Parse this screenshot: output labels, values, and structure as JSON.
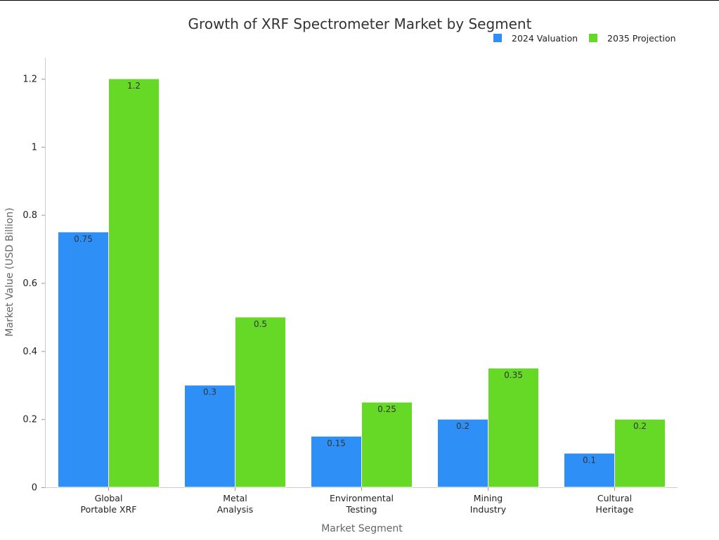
{
  "chart_data": {
    "type": "bar",
    "title": "Growth of XRF Spectrometer Market by Segment",
    "xlabel": "Market Segment",
    "ylabel": "Market Value (USD Billion)",
    "ylim": [
      0,
      1.26
    ],
    "yticks": [
      0,
      0.2,
      0.4,
      0.6,
      0.8,
      1,
      1.2
    ],
    "ytick_labels": [
      "0",
      "0.2",
      "0.4",
      "0.6",
      "0.8",
      "1",
      "1.2"
    ],
    "categories": [
      [
        "Global",
        "Portable XRF"
      ],
      [
        "Metal",
        "Analysis"
      ],
      [
        "Environmental",
        "Testing"
      ],
      [
        "Mining",
        "Industry"
      ],
      [
        "Cultural",
        "Heritage"
      ]
    ],
    "series": [
      {
        "name": "2024 Valuation",
        "color": "#2e90f7",
        "values": [
          0.75,
          0.3,
          0.15,
          0.2,
          0.1
        ],
        "labels": [
          "0.75",
          "0.3",
          "0.15",
          "0.2",
          "0.1"
        ]
      },
      {
        "name": "2035 Projection",
        "color": "#66d927",
        "values": [
          1.2,
          0.5,
          0.25,
          0.35,
          0.2
        ],
        "labels": [
          "1.2",
          "0.5",
          "0.25",
          "0.35",
          "0.2"
        ]
      }
    ],
    "legend_position": "top-right",
    "grid": false
  }
}
